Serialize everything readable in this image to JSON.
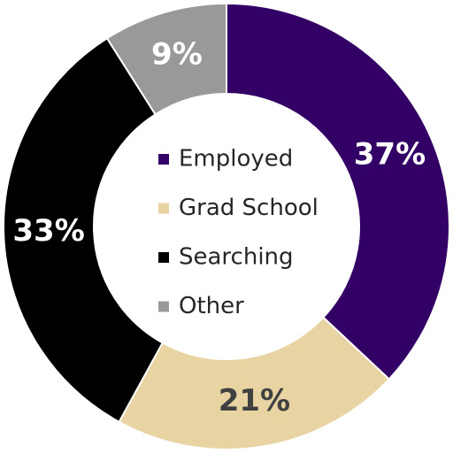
{
  "chart_data": {
    "type": "donut",
    "categories": [
      "Employed",
      "Grad School",
      "Searching",
      "Other"
    ],
    "values": [
      37,
      21,
      33,
      9
    ],
    "value_labels": [
      "37%",
      "21%",
      "33%",
      "9%"
    ],
    "colors": [
      "#330066",
      "#e8d3a2",
      "#000000",
      "#999999"
    ],
    "legend": "center"
  }
}
